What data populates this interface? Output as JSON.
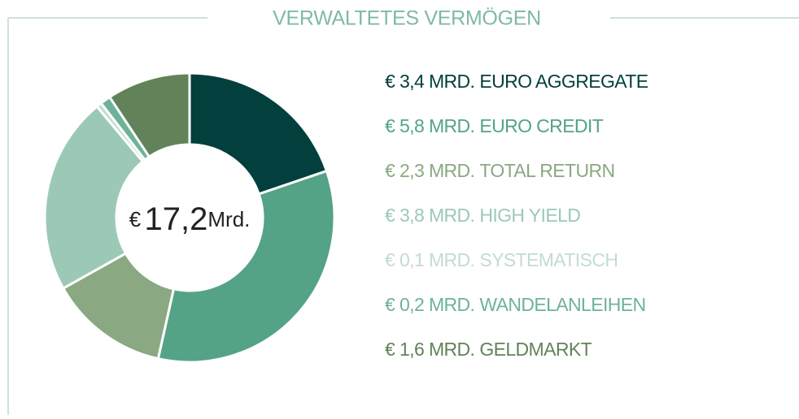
{
  "chart_data": {
    "type": "donut",
    "title": "VERWALTETES VERMÖGEN",
    "categories": [
      "EURO AGGREGATE",
      "EURO CREDIT",
      "TOTAL RETURN",
      "HIGH YIELD",
      "SYSTEMATISCH",
      "WANDELANLEIHEN",
      "GELDMARKT"
    ],
    "values": [
      3.4,
      5.8,
      2.3,
      3.8,
      0.1,
      0.2,
      1.6
    ],
    "value_labels": [
      "€ 3,4 MRD.",
      "€ 5,8 MRD.",
      "€ 2,3 MRD.",
      "€ 3,8 MRD.",
      "€ 0,1 MRD.",
      "€ 0,2 MRD.",
      "€ 1,6 MRD."
    ],
    "colors": [
      "#033f3c",
      "#55a386",
      "#8aa882",
      "#9cc9b6",
      "#c3dccf",
      "#6db399",
      "#62825a"
    ],
    "total": 17.2,
    "total_currency": "€",
    "total_label": "17,2",
    "total_unit": "Mrd."
  }
}
